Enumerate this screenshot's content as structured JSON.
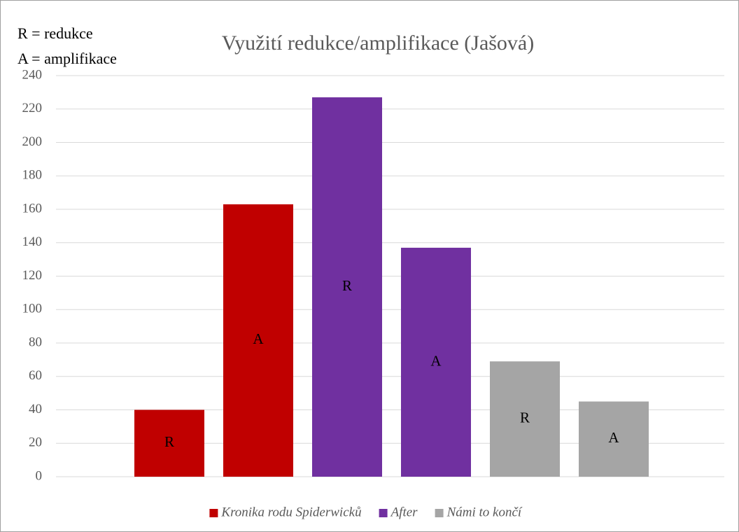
{
  "chart_data": {
    "type": "bar",
    "title": "Využití redukce/amplifikace (Jašová)",
    "annotations": [
      "R = redukce",
      "A = amplifikace"
    ],
    "categories": [
      "R",
      "A",
      "R",
      "A",
      "R",
      "A"
    ],
    "series": [
      {
        "name": "Kronika rodu Spiderwicků",
        "color": "#c00000",
        "values": [
          40,
          163,
          null,
          null,
          null,
          null
        ]
      },
      {
        "name": "After",
        "color": "#7030a0",
        "values": [
          null,
          null,
          227,
          137,
          null,
          null
        ]
      },
      {
        "name": "Námi to končí",
        "color": "#a5a5a5",
        "values": [
          null,
          null,
          null,
          null,
          69,
          45
        ]
      }
    ],
    "ylim": [
      0,
      240
    ],
    "yticks": [
      0,
      20,
      40,
      60,
      80,
      100,
      120,
      140,
      160,
      180,
      200,
      220,
      240
    ],
    "grid": true,
    "legend": "bottom"
  }
}
